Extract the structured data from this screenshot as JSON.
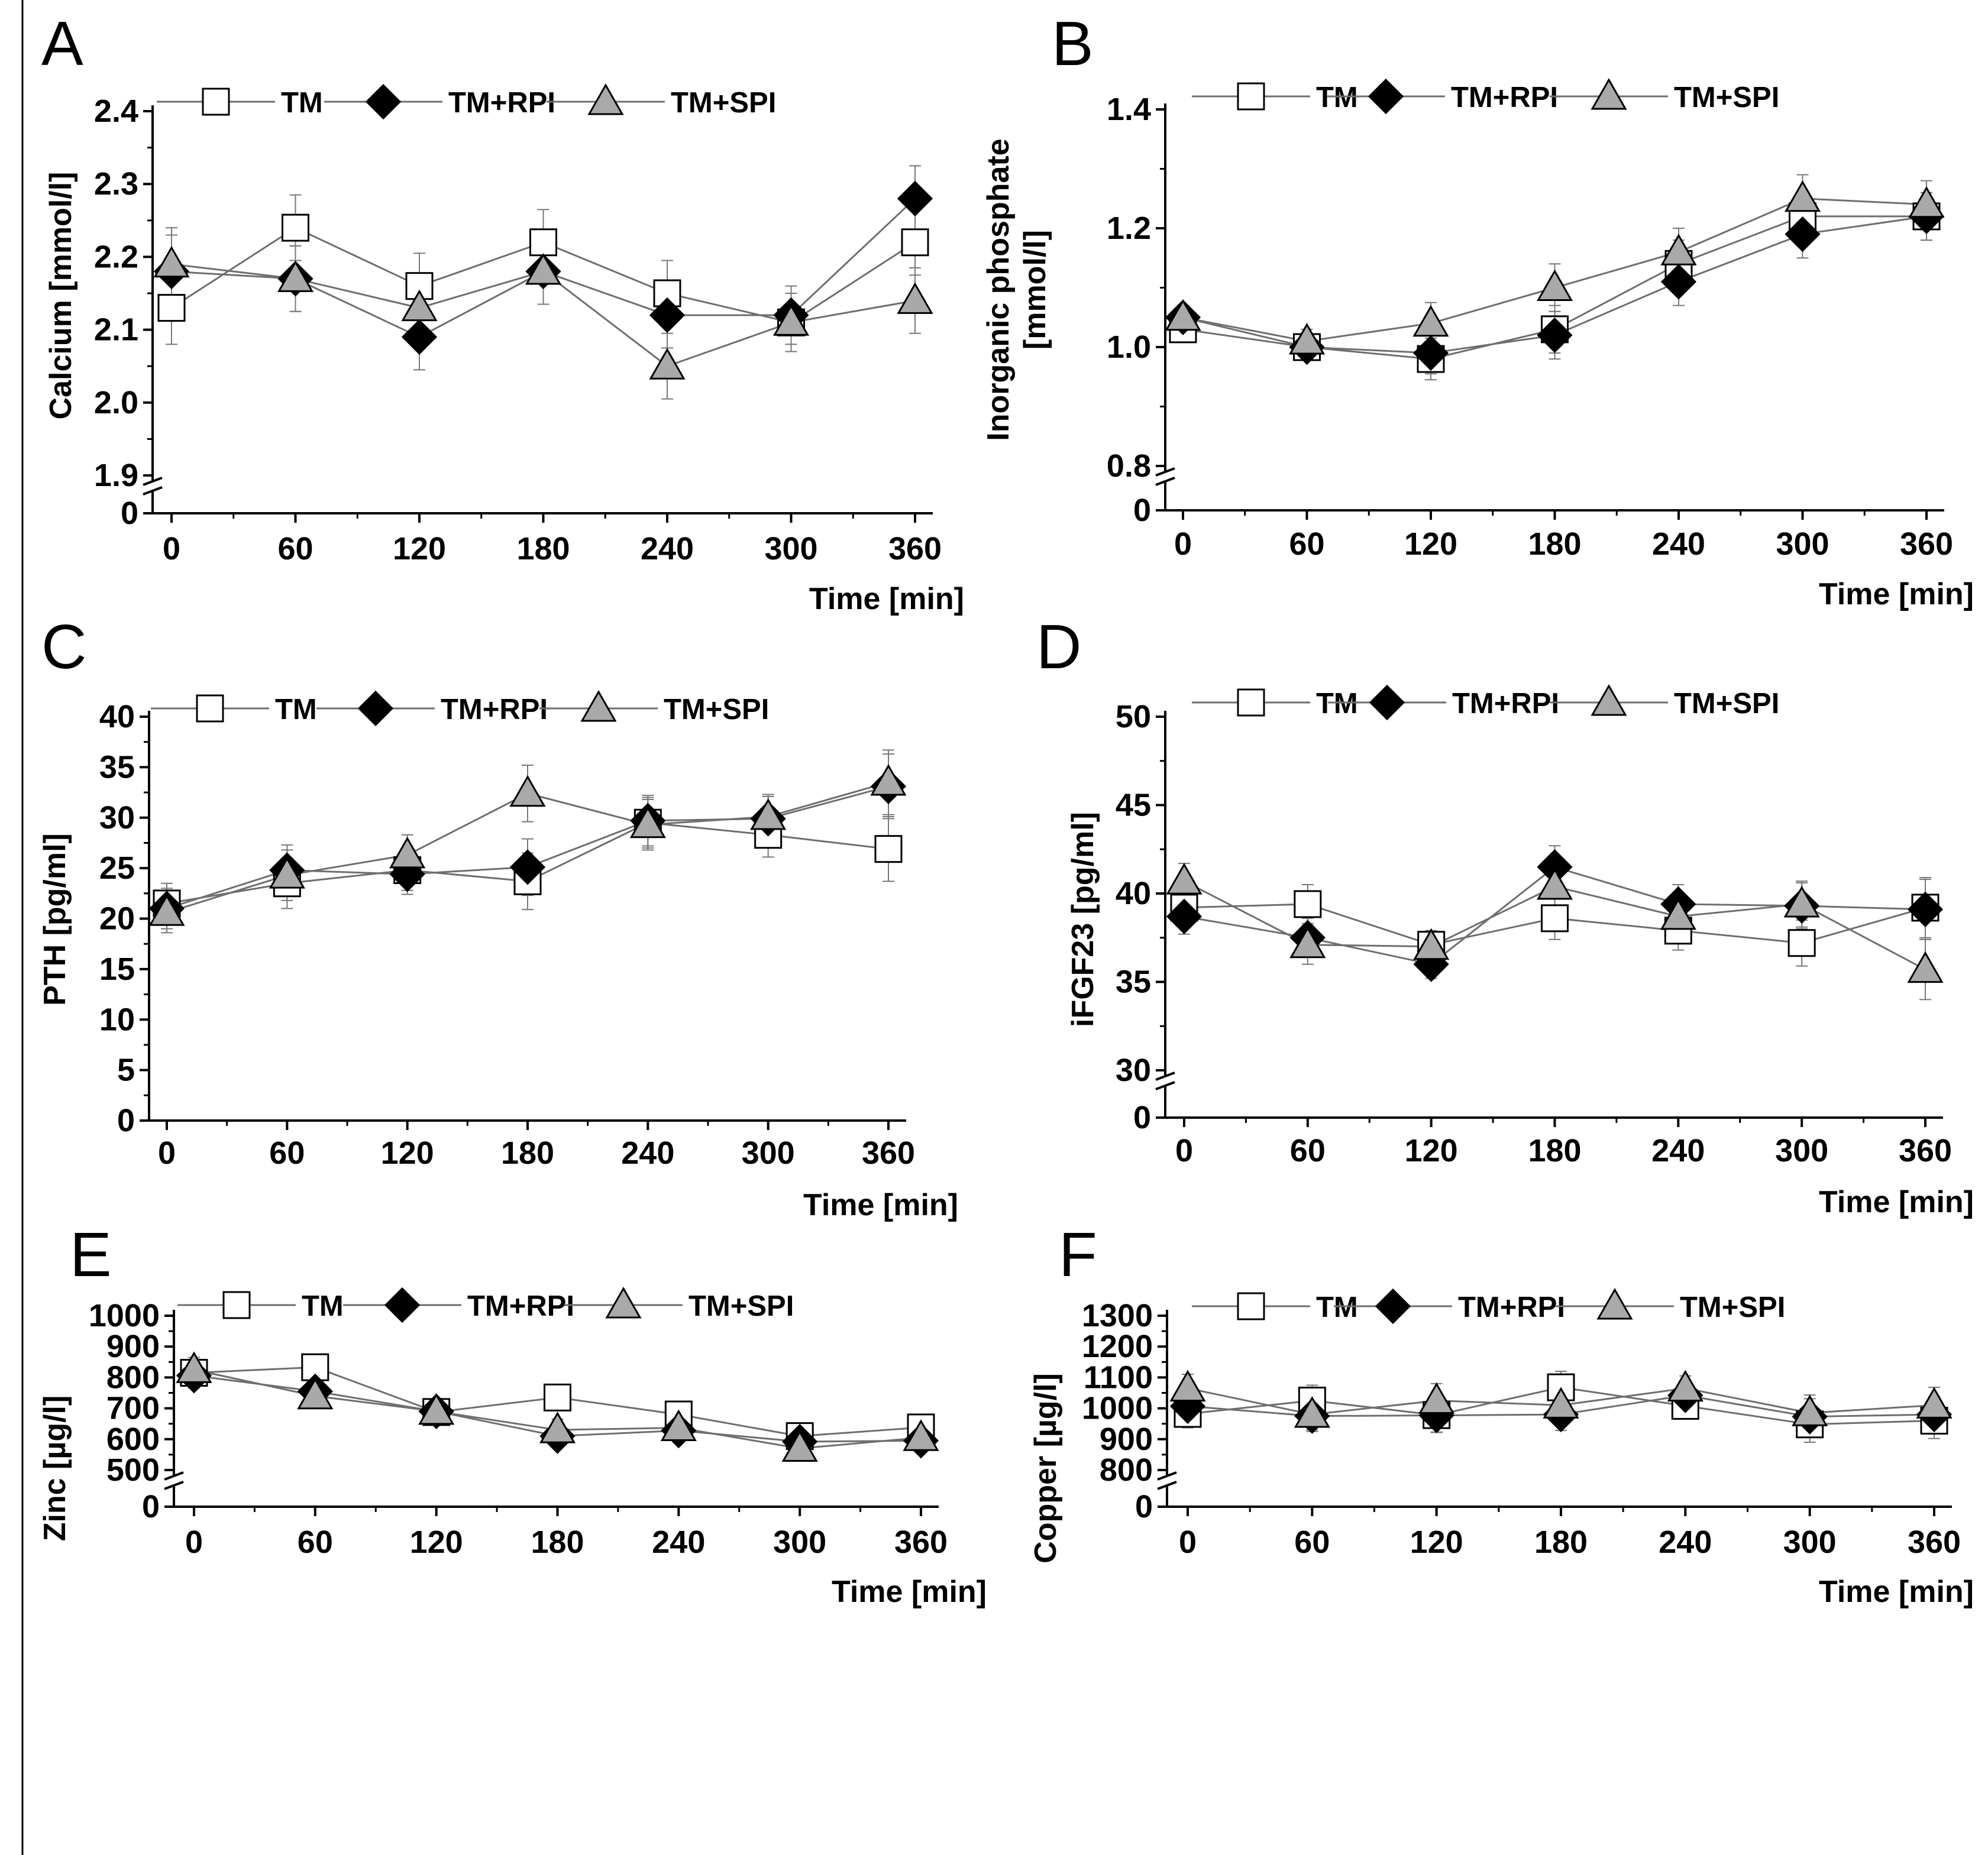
{
  "figure": {
    "series_styles": [
      {
        "name": "TM",
        "marker": "square",
        "fill": "#ffffff",
        "stroke": "#000000",
        "line": "#6e6e6e"
      },
      {
        "name": "TM+RPI",
        "marker": "diamond",
        "fill": "#000000",
        "stroke": "#000000",
        "line": "#6e6e6e"
      },
      {
        "name": "TM+SPI",
        "marker": "triangle",
        "fill": "#a9a9a9",
        "stroke": "#000000",
        "line": "#6e6e6e"
      }
    ]
  },
  "chart_data": [
    {
      "panel": "A",
      "type": "line",
      "xlabel": "Time [min]",
      "ylabel": "Calcium [mmol/l]",
      "x": [
        0,
        60,
        120,
        180,
        240,
        300,
        360
      ],
      "ylim": [
        1.9,
        2.4
      ],
      "yticks": [
        1.9,
        2.0,
        2.1,
        2.2,
        2.3,
        2.4
      ],
      "ytick_labels": [
        "1.9",
        "2.0",
        "2.1",
        "2.2",
        "2.3",
        "2.4"
      ],
      "y_break": true,
      "series": [
        {
          "name": "TM",
          "values": [
            2.13,
            2.24,
            2.16,
            2.22,
            2.15,
            2.11,
            2.22
          ],
          "errors": [
            0.05,
            0.045,
            0.045,
            0.045,
            0.045,
            0.04,
            0.045
          ]
        },
        {
          "name": "TM+RPI",
          "values": [
            2.18,
            2.17,
            2.09,
            2.18,
            2.12,
            2.12,
            2.28
          ],
          "errors": [
            0.05,
            0.045,
            0.045,
            0.045,
            0.045,
            0.04,
            0.045
          ]
        },
        {
          "name": "TM+SPI",
          "values": [
            2.19,
            2.17,
            2.13,
            2.18,
            2.05,
            2.11,
            2.14
          ],
          "errors": [
            0.05,
            0.045,
            0.045,
            0.045,
            0.045,
            0.04,
            0.045
          ]
        }
      ]
    },
    {
      "panel": "B",
      "type": "line",
      "xlabel": "Time [min]",
      "ylabel": "Inorganic phosphate [mmol/l]",
      "ylabel_lines": [
        "Inorganic phosphate",
        "[mmol/l]"
      ],
      "x": [
        0,
        60,
        120,
        180,
        240,
        300,
        360
      ],
      "ylim": [
        0.8,
        1.4
      ],
      "yticks": [
        0.8,
        1.0,
        1.2,
        1.4
      ],
      "ytick_labels": [
        "0.8",
        "1.0",
        "1.2",
        "1.4"
      ],
      "y_break": true,
      "series": [
        {
          "name": "TM",
          "values": [
            1.03,
            1.0,
            0.98,
            1.03,
            1.14,
            1.22,
            1.22
          ],
          "errors": [
            0.02,
            0.02,
            0.035,
            0.04,
            0.04,
            0.04,
            0.04
          ]
        },
        {
          "name": "TM+RPI",
          "values": [
            1.05,
            1.0,
            0.99,
            1.02,
            1.11,
            1.19,
            1.22
          ],
          "errors": [
            0.02,
            0.02,
            0.035,
            0.04,
            0.04,
            0.04,
            0.04
          ]
        },
        {
          "name": "TM+SPI",
          "values": [
            1.05,
            1.01,
            1.04,
            1.1,
            1.16,
            1.25,
            1.24
          ],
          "errors": [
            0.02,
            0.02,
            0.035,
            0.04,
            0.04,
            0.04,
            0.04
          ]
        }
      ]
    },
    {
      "panel": "C",
      "type": "line",
      "xlabel": "Time [min]",
      "ylabel": "PTH [pg/ml]",
      "x": [
        0,
        60,
        120,
        180,
        240,
        300,
        360
      ],
      "ylim": [
        0,
        40
      ],
      "yticks": [
        0,
        5,
        10,
        15,
        20,
        25,
        30,
        35,
        40
      ],
      "ytick_labels": [
        "0",
        "5",
        "10",
        "15",
        "20",
        "25",
        "30",
        "35",
        "40"
      ],
      "y_break": false,
      "series": [
        {
          "name": "TM",
          "values": [
            21.5,
            23.5,
            24.8,
            23.7,
            29.5,
            28.3,
            26.9
          ],
          "errors": [
            2.0,
            2.5,
            2.0,
            2.8,
            2.5,
            2.2,
            3.2
          ]
        },
        {
          "name": "TM+RPI",
          "values": [
            21.0,
            24.8,
            24.4,
            25.1,
            29.7,
            29.9,
            33.1
          ],
          "errors": [
            2.0,
            2.5,
            2.0,
            2.8,
            2.5,
            2.2,
            3.2
          ]
        },
        {
          "name": "TM+SPI",
          "values": [
            20.6,
            24.3,
            26.3,
            32.4,
            29.3,
            30.1,
            33.5
          ],
          "errors": [
            2.0,
            2.5,
            2.0,
            2.8,
            2.5,
            2.2,
            3.2
          ]
        }
      ]
    },
    {
      "panel": "D",
      "type": "line",
      "xlabel": "Time [min]",
      "ylabel": "iFGF23 [pg/ml]",
      "x": [
        0,
        60,
        120,
        180,
        240,
        300,
        360
      ],
      "ylim": [
        30,
        50
      ],
      "yticks": [
        30,
        35,
        40,
        45,
        50
      ],
      "ytick_labels": [
        "30",
        "35",
        "40",
        "45",
        "50"
      ],
      "y_break": true,
      "series": [
        {
          "name": "TM",
          "values": [
            39.2,
            39.4,
            37.1,
            38.6,
            37.9,
            37.2,
            39.2
          ],
          "errors": [
            1.0,
            1.1,
            0.8,
            1.2,
            1.1,
            1.3,
            1.7
          ]
        },
        {
          "name": "TM+RPI",
          "values": [
            38.7,
            37.5,
            36.0,
            41.5,
            39.4,
            39.3,
            39.1
          ],
          "errors": [
            1.0,
            1.1,
            0.8,
            1.2,
            1.1,
            1.3,
            1.7
          ]
        },
        {
          "name": "TM+SPI",
          "values": [
            40.7,
            37.1,
            37.0,
            40.4,
            38.7,
            39.4,
            35.7
          ],
          "errors": [
            1.0,
            1.1,
            0.8,
            1.2,
            1.1,
            1.3,
            1.7
          ]
        }
      ]
    },
    {
      "panel": "E",
      "type": "line",
      "xlabel": "Time [min]",
      "ylabel": "Zinc [µg/l]",
      "x": [
        0,
        60,
        120,
        180,
        240,
        300,
        360
      ],
      "ylim": [
        500,
        1000
      ],
      "yticks": [
        500,
        600,
        700,
        800,
        900,
        1000
      ],
      "ytick_labels": [
        "500",
        "600",
        "700",
        "800",
        "900",
        "1000"
      ],
      "y_break": true,
      "series": [
        {
          "name": "TM",
          "values": [
            815,
            833,
            688,
            735,
            680,
            610,
            638
          ],
          "errors": [
            40,
            40,
            40,
            35,
            35,
            32,
            32
          ]
        },
        {
          "name": "TM+RPI",
          "values": [
            806,
            755,
            690,
            610,
            628,
            592,
            595
          ],
          "errors": [
            40,
            40,
            40,
            35,
            35,
            32,
            32
          ]
        },
        {
          "name": "TM+SPI",
          "values": [
            825,
            740,
            690,
            630,
            637,
            570,
            605
          ],
          "errors": [
            40,
            40,
            40,
            35,
            35,
            32,
            32
          ]
        }
      ]
    },
    {
      "panel": "F",
      "type": "line",
      "xlabel": "Time [min]",
      "ylabel": "Copper [µg/l]",
      "x": [
        0,
        60,
        120,
        180,
        240,
        300,
        360
      ],
      "ylim": [
        800,
        1300
      ],
      "yticks": [
        800,
        900,
        1000,
        1100,
        1200,
        1300
      ],
      "ytick_labels": [
        "800",
        "900",
        "1000",
        "1100",
        "1200",
        "1300"
      ],
      "y_break": true,
      "series": [
        {
          "name": "TM",
          "values": [
            982,
            1025,
            978,
            1068,
            1008,
            948,
            960
          ],
          "errors": [
            45,
            50,
            55,
            52,
            40,
            58,
            58
          ]
        },
        {
          "name": "TM+RPI",
          "values": [
            1007,
            975,
            977,
            980,
            1042,
            973,
            980
          ],
          "errors": [
            45,
            50,
            55,
            52,
            40,
            58,
            58
          ]
        },
        {
          "name": "TM+SPI",
          "values": [
            1065,
            980,
            1025,
            1010,
            1065,
            985,
            1010
          ],
          "errors": [
            45,
            50,
            55,
            52,
            40,
            58,
            58
          ]
        }
      ]
    }
  ]
}
